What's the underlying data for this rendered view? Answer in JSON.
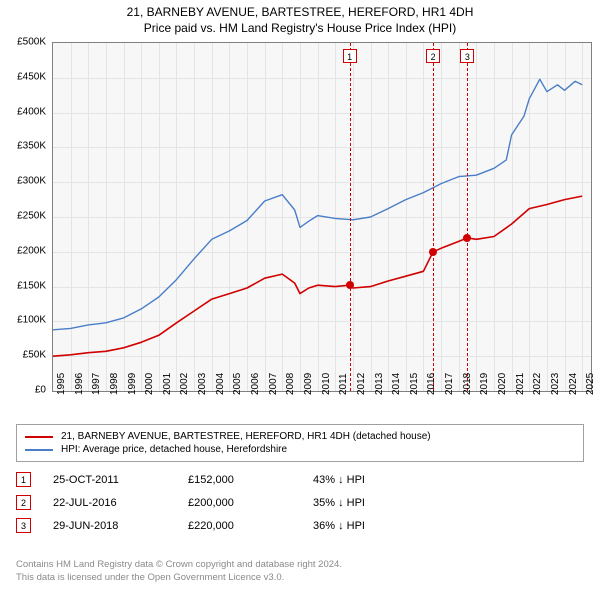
{
  "title": {
    "line1": "21, BARNEBY AVENUE, BARTESTREE, HEREFORD, HR1 4DH",
    "line2": "Price paid vs. HM Land Registry's House Price Index (HPI)"
  },
  "chart": {
    "type": "line",
    "background_color": "#f7f7f7",
    "grid_color": "#e4e4e4",
    "border_color": "#808080",
    "y": {
      "min": 0,
      "max": 500000,
      "ticks": [
        0,
        50000,
        100000,
        150000,
        200000,
        250000,
        300000,
        350000,
        400000,
        450000,
        500000
      ],
      "tick_labels": [
        "£0",
        "£50K",
        "£100K",
        "£150K",
        "£200K",
        "£250K",
        "£300K",
        "£350K",
        "£400K",
        "£450K",
        "£500K"
      ],
      "label_fontsize": 10
    },
    "x": {
      "min": 1995,
      "max": 2025.5,
      "ticks": [
        1995,
        1996,
        1997,
        1998,
        1999,
        2000,
        2001,
        2002,
        2003,
        2004,
        2005,
        2006,
        2007,
        2008,
        2009,
        2010,
        2011,
        2012,
        2013,
        2014,
        2015,
        2016,
        2017,
        2018,
        2019,
        2020,
        2021,
        2022,
        2023,
        2024,
        2025
      ],
      "tick_labels": [
        "1995",
        "1996",
        "1997",
        "1998",
        "1999",
        "2000",
        "2001",
        "2002",
        "2003",
        "2004",
        "2005",
        "2006",
        "2007",
        "2008",
        "2009",
        "2010",
        "2011",
        "2012",
        "2013",
        "2014",
        "2015",
        "2016",
        "2017",
        "2018",
        "2019",
        "2020",
        "2021",
        "2022",
        "2023",
        "2024",
        "2025"
      ],
      "label_fontsize": 10
    },
    "series": [
      {
        "name": "property",
        "color": "#d10000",
        "line_width": 1.6,
        "label": "21, BARNEBY AVENUE, BARTESTREE, HEREFORD, HR1 4DH (detached house)",
        "points": [
          [
            1995,
            50000
          ],
          [
            1996,
            52000
          ],
          [
            1997,
            55000
          ],
          [
            1998,
            57000
          ],
          [
            1999,
            62000
          ],
          [
            2000,
            70000
          ],
          [
            2001,
            80000
          ],
          [
            2002,
            98000
          ],
          [
            2003,
            115000
          ],
          [
            2004,
            132000
          ],
          [
            2005,
            140000
          ],
          [
            2006,
            148000
          ],
          [
            2007,
            162000
          ],
          [
            2008,
            168000
          ],
          [
            2008.7,
            155000
          ],
          [
            2009,
            140000
          ],
          [
            2009.5,
            148000
          ],
          [
            2010,
            152000
          ],
          [
            2011,
            150000
          ],
          [
            2011.8,
            152000
          ],
          [
            2012,
            148000
          ],
          [
            2013,
            150000
          ],
          [
            2014,
            158000
          ],
          [
            2015,
            165000
          ],
          [
            2016,
            172000
          ],
          [
            2016.55,
            200000
          ],
          [
            2017,
            205000
          ],
          [
            2018,
            215000
          ],
          [
            2018.5,
            220000
          ],
          [
            2019,
            218000
          ],
          [
            2020,
            222000
          ],
          [
            2021,
            240000
          ],
          [
            2022,
            262000
          ],
          [
            2023,
            268000
          ],
          [
            2024,
            275000
          ],
          [
            2025,
            280000
          ]
        ]
      },
      {
        "name": "hpi",
        "color": "#4a7ec8",
        "line_width": 1.4,
        "label": "HPI: Average price, detached house, Herefordshire",
        "points": [
          [
            1995,
            88000
          ],
          [
            1996,
            90000
          ],
          [
            1997,
            95000
          ],
          [
            1998,
            98000
          ],
          [
            1999,
            105000
          ],
          [
            2000,
            118000
          ],
          [
            2001,
            135000
          ],
          [
            2002,
            160000
          ],
          [
            2003,
            190000
          ],
          [
            2004,
            218000
          ],
          [
            2005,
            230000
          ],
          [
            2006,
            245000
          ],
          [
            2007,
            273000
          ],
          [
            2008,
            282000
          ],
          [
            2008.7,
            260000
          ],
          [
            2009,
            235000
          ],
          [
            2009.5,
            244000
          ],
          [
            2010,
            252000
          ],
          [
            2011,
            248000
          ],
          [
            2012,
            246000
          ],
          [
            2013,
            250000
          ],
          [
            2014,
            262000
          ],
          [
            2015,
            275000
          ],
          [
            2016,
            285000
          ],
          [
            2017,
            298000
          ],
          [
            2018,
            308000
          ],
          [
            2019,
            310000
          ],
          [
            2020,
            320000
          ],
          [
            2020.7,
            332000
          ],
          [
            2021,
            368000
          ],
          [
            2021.7,
            395000
          ],
          [
            2022,
            420000
          ],
          [
            2022.6,
            448000
          ],
          [
            2023,
            430000
          ],
          [
            2023.6,
            440000
          ],
          [
            2024,
            432000
          ],
          [
            2024.6,
            445000
          ],
          [
            2025,
            440000
          ]
        ]
      }
    ],
    "markers": [
      {
        "n": "1",
        "x": 2011.82,
        "y": 152000,
        "box_color": "#d10000"
      },
      {
        "n": "2",
        "x": 2016.55,
        "y": 200000,
        "box_color": "#d10000"
      },
      {
        "n": "3",
        "x": 2018.49,
        "y": 220000,
        "box_color": "#d10000"
      }
    ]
  },
  "legend": {
    "border_color": "#a0a0a0",
    "items": [
      {
        "color": "#d10000",
        "text": "21, BARNEBY AVENUE, BARTESTREE, HEREFORD, HR1 4DH (detached house)"
      },
      {
        "color": "#4a7ec8",
        "text": "HPI: Average price, detached house, Herefordshire"
      }
    ]
  },
  "events": [
    {
      "n": "1",
      "box_color": "#d10000",
      "date": "25-OCT-2011",
      "price": "£152,000",
      "note": "43% ↓ HPI"
    },
    {
      "n": "2",
      "box_color": "#d10000",
      "date": "22-JUL-2016",
      "price": "£200,000",
      "note": "35% ↓ HPI"
    },
    {
      "n": "3",
      "box_color": "#d10000",
      "date": "29-JUN-2018",
      "price": "£220,000",
      "note": "36% ↓ HPI"
    }
  ],
  "footer": {
    "line1": "Contains HM Land Registry data © Crown copyright and database right 2024.",
    "line2": "This data is licensed under the Open Government Licence v3.0.",
    "color": "#8a8a8a"
  }
}
